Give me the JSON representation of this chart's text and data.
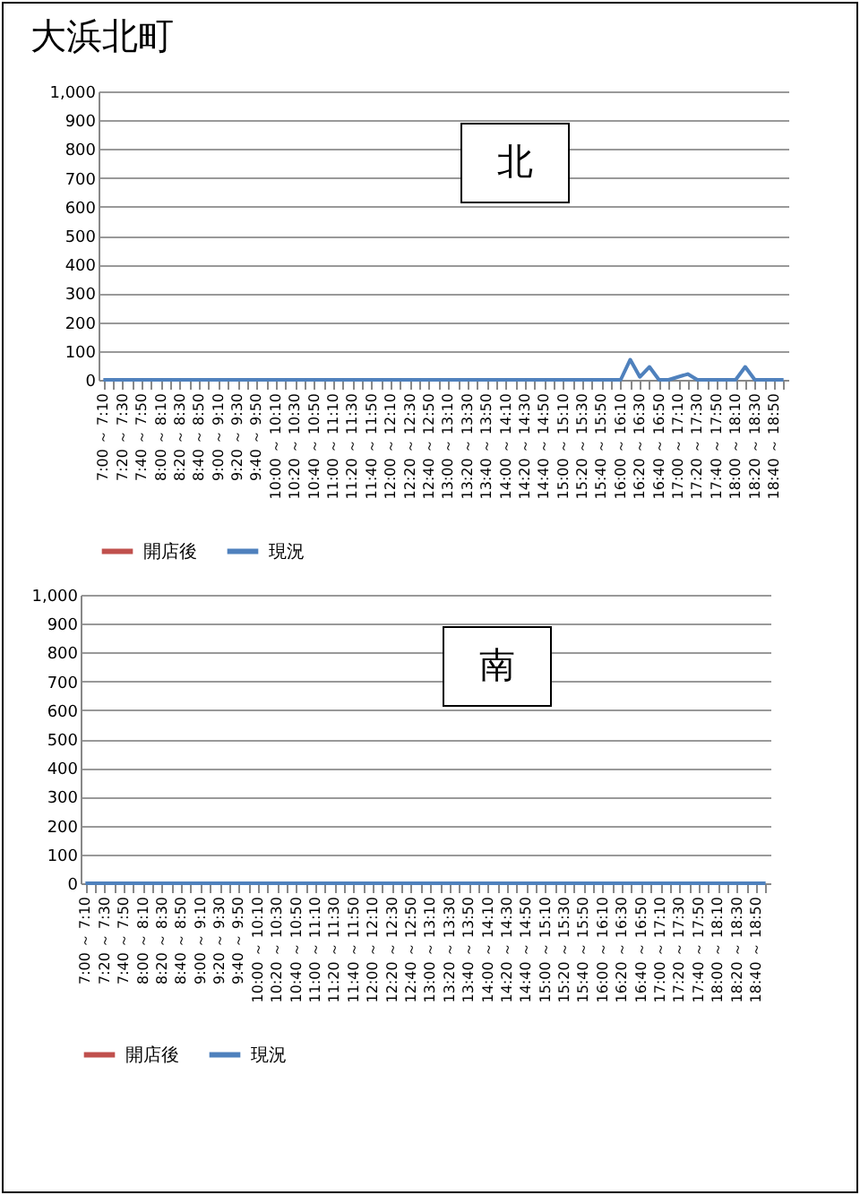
{
  "chart_data": [
    {
      "type": "line",
      "title": "大浜北町",
      "annotations": [
        "北"
      ],
      "categories": [
        "7:00 ～ 7:10",
        null,
        "7:20 ～ 7:30",
        null,
        "7:40 ～ 7:50",
        null,
        "8:00 ～ 8:10",
        null,
        "8:20 ～ 8:30",
        null,
        "8:40 ～ 8:50",
        null,
        "9:00 ～ 9:10",
        null,
        "9:20 ～ 9:30",
        null,
        "9:40 ～ 9:50",
        null,
        "10:00 ～ 10:10",
        null,
        "10:20 ～ 10:30",
        null,
        "10:40 ～ 10:50",
        null,
        "11:00 ～ 11:10",
        null,
        "11:20 ～ 11:30",
        null,
        "11:40 ～ 11:50",
        null,
        "12:00 ～ 12:10",
        null,
        "12:20 ～ 12:30",
        null,
        "12:40 ～ 12:50",
        null,
        "13:00 ～ 13:10",
        null,
        "13:20 ～ 13:30",
        null,
        "13:40 ～ 13:50",
        null,
        "14:00 ～ 14:10",
        null,
        "14:20 ～ 14:30",
        null,
        "14:40 ～ 14:50",
        null,
        "15:00 ～ 15:10",
        null,
        "15:20 ～ 15:30",
        null,
        "15:40 ～ 15:50",
        null,
        "16:00 ～ 16:10",
        null,
        "16:20 ～ 16:30",
        null,
        "16:40 ～ 16:50",
        null,
        "17:00 ～ 17:10",
        null,
        "17:20 ～ 17:30",
        null,
        "17:40 ～ 17:50",
        null,
        "18:00 ～ 18:10",
        null,
        "18:20 ～ 18:30",
        null,
        "18:40 ～ 18:50",
        null
      ],
      "series": [
        {
          "name": "開店後",
          "color": "#c0504d",
          "values": [
            null,
            null,
            null,
            null,
            null,
            null,
            null,
            null,
            null,
            null,
            null,
            null,
            null,
            null,
            null,
            null,
            null,
            null,
            null,
            null,
            null,
            null,
            null,
            null,
            null,
            null,
            null,
            null,
            null,
            null,
            null,
            null,
            null,
            null,
            null,
            null,
            null,
            null,
            null,
            null,
            null,
            null,
            null,
            null,
            null,
            null,
            null,
            null,
            null,
            null,
            null,
            null,
            null,
            null,
            null,
            null,
            null,
            null,
            null,
            null,
            null,
            null,
            null,
            null,
            null,
            null,
            null,
            null,
            null,
            null,
            null,
            null
          ]
        },
        {
          "name": "現況",
          "color": "#4f81bd",
          "values": [
            0,
            0,
            0,
            0,
            0,
            0,
            0,
            0,
            0,
            0,
            0,
            0,
            0,
            0,
            0,
            0,
            0,
            0,
            0,
            0,
            0,
            0,
            0,
            0,
            0,
            0,
            0,
            0,
            0,
            0,
            0,
            0,
            0,
            0,
            0,
            0,
            0,
            0,
            0,
            0,
            0,
            0,
            0,
            0,
            0,
            0,
            0,
            0,
            0,
            0,
            0,
            0,
            0,
            0,
            0,
            70,
            10,
            45,
            0,
            0,
            10,
            20,
            0,
            0,
            0,
            0,
            0,
            45,
            0,
            0,
            0,
            0
          ]
        }
      ],
      "ylim": [
        0,
        1000
      ],
      "yticks": [
        0,
        100,
        200,
        300,
        400,
        500,
        600,
        700,
        800,
        900,
        {
          "value": 1000,
          "label": "1,000"
        }
      ],
      "grid": "y",
      "legend": "bottom"
    },
    {
      "type": "line",
      "annotations": [
        "南"
      ],
      "categories": [
        "7:00 ～ 7:10",
        null,
        "7:20 ～ 7:30",
        null,
        "7:40 ～ 7:50",
        null,
        "8:00 ～ 8:10",
        null,
        "8:20 ～ 8:30",
        null,
        "8:40 ～ 8:50",
        null,
        "9:00 ～ 9:10",
        null,
        "9:20 ～ 9:30",
        null,
        "9:40 ～ 9:50",
        null,
        "10:00 ～ 10:10",
        null,
        "10:20 ～ 10:30",
        null,
        "10:40 ～ 10:50",
        null,
        "11:00 ～ 11:10",
        null,
        "11:20 ～ 11:30",
        null,
        "11:40 ～ 11:50",
        null,
        "12:00 ～ 12:10",
        null,
        "12:20 ～ 12:30",
        null,
        "12:40 ～ 12:50",
        null,
        "13:00 ～ 13:10",
        null,
        "13:20 ～ 13:30",
        null,
        "13:40 ～ 13:50",
        null,
        "14:00 ～ 14:10",
        null,
        "14:20 ～ 14:30",
        null,
        "14:40 ～ 14:50",
        null,
        "15:00 ～ 15:10",
        null,
        "15:20 ～ 15:30",
        null,
        "15:40 ～ 15:50",
        null,
        "16:00 ～ 16:10",
        null,
        "16:20 ～ 16:30",
        null,
        "16:40 ～ 16:50",
        null,
        "17:00 ～ 17:10",
        null,
        "17:20 ～ 17:30",
        null,
        "17:40 ～ 17:50",
        null,
        "18:00 ～ 18:10",
        null,
        "18:20 ～ 18:30",
        null,
        "18:40 ～ 18:50",
        null
      ],
      "series": [
        {
          "name": "開店後",
          "color": "#c0504d",
          "values": [
            null,
            null,
            null,
            null,
            null,
            null,
            null,
            null,
            null,
            null,
            null,
            null,
            null,
            null,
            null,
            null,
            null,
            null,
            null,
            null,
            null,
            null,
            null,
            null,
            null,
            null,
            null,
            null,
            null,
            null,
            null,
            null,
            null,
            null,
            null,
            null,
            null,
            null,
            null,
            null,
            null,
            null,
            null,
            null,
            null,
            null,
            null,
            null,
            null,
            null,
            null,
            null,
            null,
            null,
            null,
            null,
            null,
            null,
            null,
            null,
            null,
            null,
            null,
            null,
            null,
            null,
            null,
            null,
            null,
            null,
            null,
            null
          ]
        },
        {
          "name": "現況",
          "color": "#4f81bd",
          "values": [
            0,
            0,
            0,
            0,
            0,
            0,
            0,
            0,
            0,
            0,
            0,
            0,
            0,
            0,
            0,
            0,
            0,
            0,
            0,
            0,
            0,
            0,
            0,
            0,
            0,
            0,
            0,
            0,
            0,
            0,
            0,
            0,
            0,
            0,
            0,
            0,
            0,
            0,
            0,
            0,
            0,
            0,
            0,
            0,
            0,
            0,
            0,
            0,
            0,
            0,
            0,
            0,
            0,
            0,
            0,
            0,
            0,
            0,
            0,
            0,
            0,
            0,
            0,
            0,
            0,
            0,
            0,
            0,
            0,
            0,
            0,
            0
          ]
        }
      ],
      "ylim": [
        0,
        1000
      ],
      "yticks": [
        0,
        100,
        200,
        300,
        400,
        500,
        600,
        700,
        800,
        900,
        {
          "value": 1000,
          "label": "1,000"
        }
      ],
      "grid": "y",
      "legend": "bottom"
    }
  ]
}
